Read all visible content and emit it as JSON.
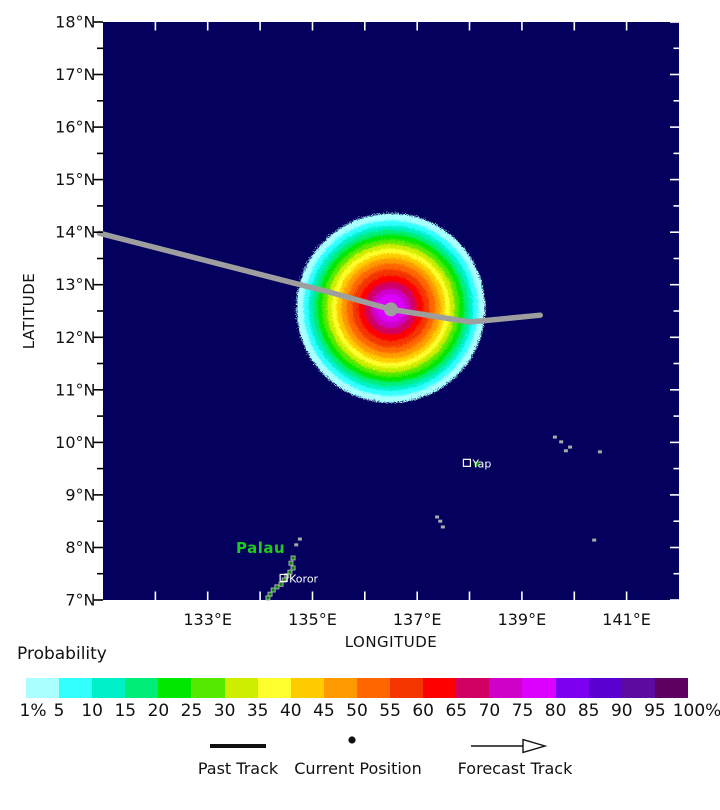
{
  "page": {
    "background": "#ffffff"
  },
  "chart_data": {
    "type": "heatmap",
    "xlabel": "LONGITUDE",
    "ylabel": "LATITUDE",
    "xlim": [
      131,
      142
    ],
    "ylim": [
      7,
      18
    ],
    "grid": false,
    "x_ticks": [
      {
        "lon": 133,
        "label": "133°E"
      },
      {
        "lon": 135,
        "label": "135°E"
      },
      {
        "lon": 137,
        "label": "137°E"
      },
      {
        "lon": 139,
        "label": "139°E"
      },
      {
        "lon": 141,
        "label": "141°E"
      }
    ],
    "y_ticks": [
      {
        "lat": 7,
        "label": "7°N"
      },
      {
        "lat": 8,
        "label": "8°N"
      },
      {
        "lat": 9,
        "label": "9°N"
      },
      {
        "lat": 10,
        "label": "10°N"
      },
      {
        "lat": 11,
        "label": "11°N"
      },
      {
        "lat": 12,
        "label": "12°N"
      },
      {
        "lat": 13,
        "label": "13°N"
      },
      {
        "lat": 14,
        "label": "14°N"
      },
      {
        "lat": 15,
        "label": "15°N"
      },
      {
        "lat": 16,
        "label": "16°N"
      },
      {
        "lat": 17,
        "label": "17°N"
      },
      {
        "lat": 18,
        "label": "18°N"
      }
    ],
    "colorbar": {
      "title": "Probability",
      "unit": "%",
      "tick_labels": [
        "1%",
        "5",
        "10",
        "15",
        "20",
        "25",
        "30",
        "35",
        "40",
        "45",
        "50",
        "55",
        "60",
        "65",
        "70",
        "75",
        "80",
        "85",
        "90",
        "95",
        "100%"
      ],
      "colors": [
        "#aaffff",
        "#33ffff",
        "#00f0c8",
        "#00ee77",
        "#00e800",
        "#55e800",
        "#cdee00",
        "#ffff2e",
        "#ffcc00",
        "#ff9900",
        "#ff6600",
        "#f53500",
        "#ff0000",
        "#d10063",
        "#cf00c8",
        "#dc00ff",
        "#7d00f0",
        "#5a00d0",
        "#5c0b9e",
        "#5e0060"
      ]
    },
    "probability_field": {
      "center": {
        "lon": 136.45,
        "lat": 12.6
      },
      "peak_percent_band": "75-80",
      "contour_rings": [
        {
          "percent": 1,
          "radius_deg": 1.8
        },
        {
          "percent": 5,
          "radius_deg": 1.67
        },
        {
          "percent": 10,
          "radius_deg": 1.57
        },
        {
          "percent": 15,
          "radius_deg": 1.49
        },
        {
          "percent": 20,
          "radius_deg": 1.4
        },
        {
          "percent": 25,
          "radius_deg": 1.31
        },
        {
          "percent": 30,
          "radius_deg": 1.22
        },
        {
          "percent": 35,
          "radius_deg": 1.13
        },
        {
          "percent": 40,
          "radius_deg": 1.04
        },
        {
          "percent": 45,
          "radius_deg": 0.95
        },
        {
          "percent": 50,
          "radius_deg": 0.85
        },
        {
          "percent": 55,
          "radius_deg": 0.74
        },
        {
          "percent": 60,
          "radius_deg": 0.62
        },
        {
          "percent": 65,
          "radius_deg": 0.5
        },
        {
          "percent": 70,
          "radius_deg": 0.38
        },
        {
          "percent": 75,
          "radius_deg": 0.27
        }
      ]
    },
    "track": {
      "past_points": [
        [
          130.93,
          13.98
        ],
        [
          135.39,
          12.84
        ],
        [
          136.5,
          12.53
        ]
      ],
      "current_position": {
        "lon": 136.5,
        "lat": 12.53
      },
      "forecast_points": [
        [
          136.5,
          12.53
        ],
        [
          138.01,
          12.29
        ],
        [
          139.35,
          12.42
        ]
      ]
    },
    "legend": {
      "items": [
        {
          "symbol": "thick-line",
          "label": "Past Track"
        },
        {
          "symbol": "dot",
          "label": "Current Position"
        },
        {
          "symbol": "open-arrow",
          "label": "Forecast Track"
        }
      ]
    },
    "places": [
      {
        "name": "Palau",
        "kind": "country-label",
        "lon": 133.54,
        "lat": 7.89,
        "color": "#1ecb1e"
      },
      {
        "name": "Koror",
        "kind": "city",
        "lon": 134.45,
        "lat": 7.42
      },
      {
        "name": "Yap",
        "kind": "city",
        "lon": 137.95,
        "lat": 9.61
      }
    ]
  },
  "map_style": {
    "sea_color": "#04015e",
    "track_color": "#9e9e9e",
    "outer_tick_color": "#000000",
    "inner_tick_color": "#ffffff",
    "axis_text_color": "#111111",
    "city_label_color": "#ffffff",
    "island_color": "#0a8a0a",
    "island_outline_color": "#a8aca8"
  },
  "islands": {
    "palau_chain": [
      [
        134.63,
        7.8
      ],
      [
        134.59,
        7.7
      ],
      [
        134.63,
        7.61
      ],
      [
        134.57,
        7.53
      ],
      [
        134.51,
        7.46
      ],
      [
        134.46,
        7.38
      ],
      [
        134.4,
        7.3
      ],
      [
        134.32,
        7.25
      ],
      [
        134.25,
        7.19
      ],
      [
        134.19,
        7.11
      ],
      [
        134.15,
        7.04
      ]
    ],
    "yap_island": [
      [
        138.14,
        9.59
      ]
    ],
    "small_islets": [
      [
        134.69,
        8.05
      ],
      [
        134.76,
        8.16
      ],
      [
        139.63,
        10.1
      ],
      [
        139.75,
        10.01
      ],
      [
        139.92,
        9.91
      ],
      [
        139.84,
        9.84
      ],
      [
        140.49,
        9.82
      ],
      [
        140.38,
        8.14
      ],
      [
        137.44,
        8.5
      ],
      [
        137.49,
        8.39
      ],
      [
        137.38,
        8.58
      ]
    ]
  }
}
